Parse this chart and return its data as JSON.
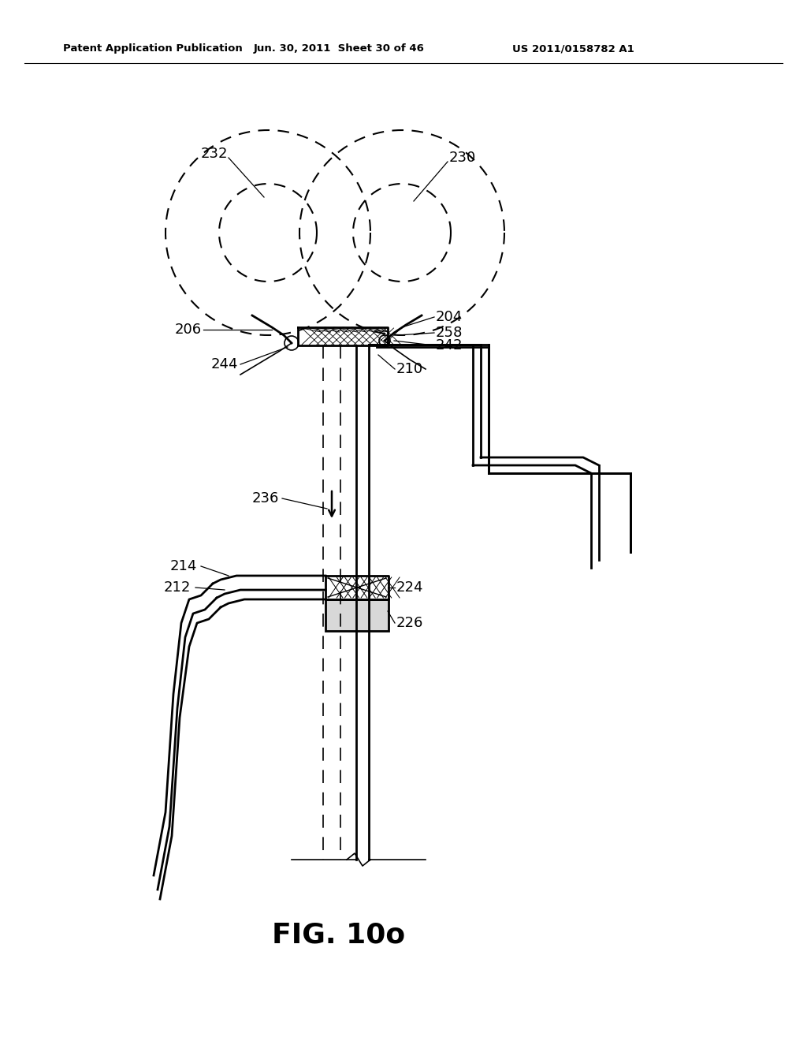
{
  "bg_color": "#ffffff",
  "line_color": "#000000",
  "header_left": "Patent Application Publication",
  "header_mid": "Jun. 30, 2011  Sheet 30 of 46",
  "header_right": "US 2011/0158782 A1",
  "figure_label": "FIG. 10o"
}
